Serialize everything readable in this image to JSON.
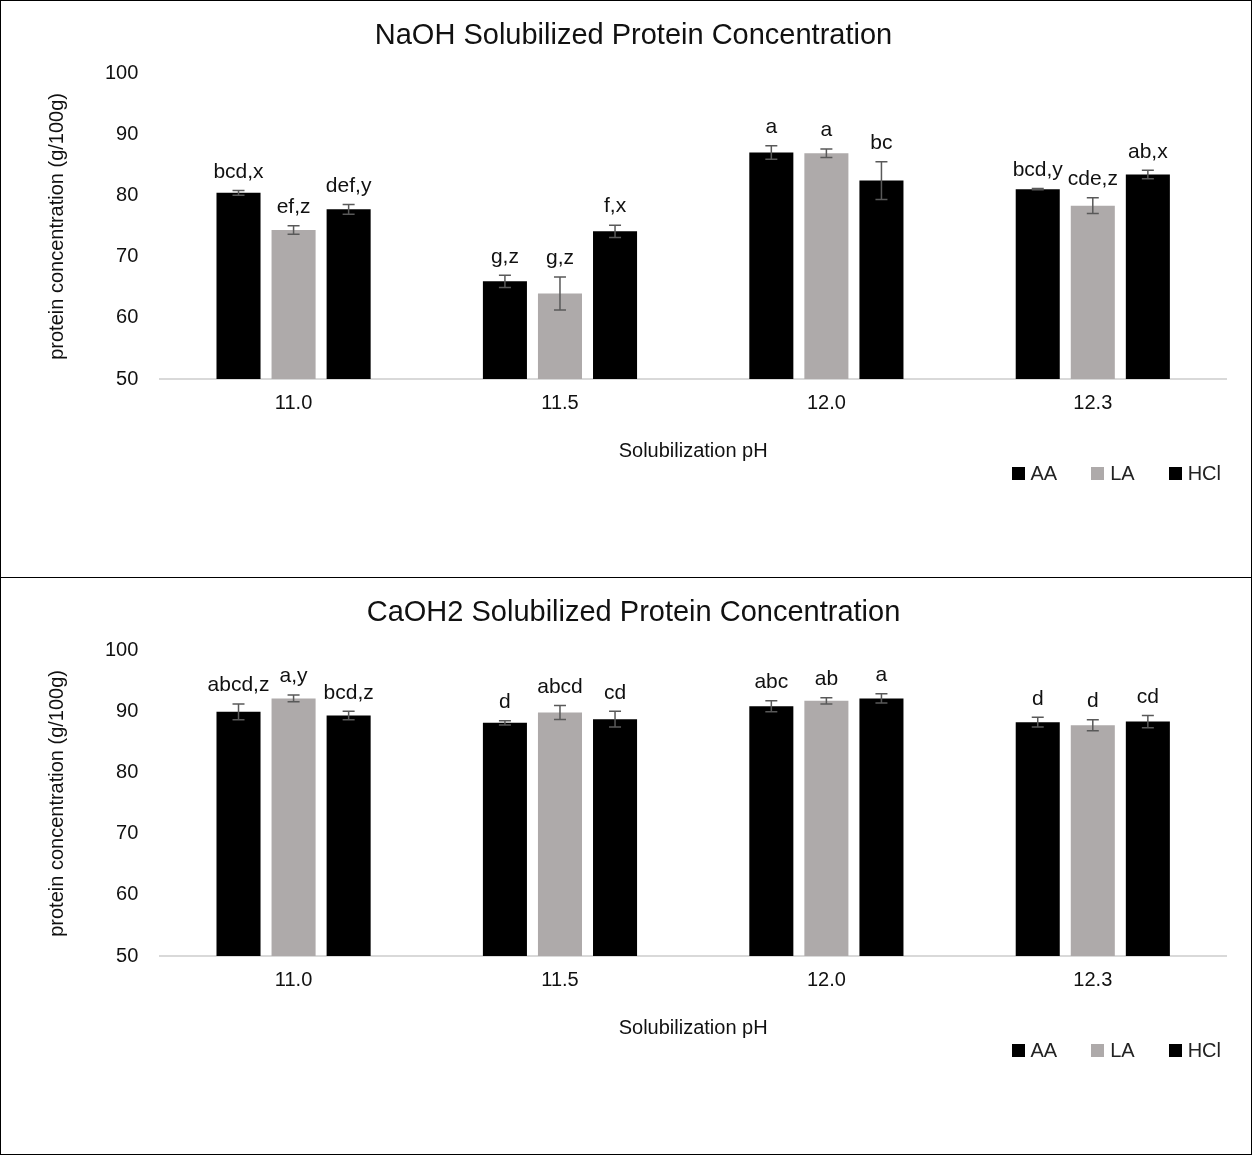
{
  "chart_data": [
    {
      "type": "bar",
      "title": "NaOH Solubilized Protein Concentration",
      "xlabel": "Solubilization pH",
      "ylabel": "protein concentration (g/100g)",
      "categories": [
        "11.0",
        "11.5",
        "12.0",
        "12.3"
      ],
      "ylim": [
        50,
        100
      ],
      "yticks": [
        50,
        60,
        70,
        80,
        90,
        100
      ],
      "legend": "bottom right",
      "series": [
        {
          "name": "AA",
          "color": "#000000",
          "values": [
            80.5,
            66.0,
            87.1,
            81.1
          ],
          "errors": [
            0.4,
            1.0,
            1.1,
            0.1
          ],
          "value_labels": [
            "bcd,x",
            "g,z",
            "a",
            "bcd,y"
          ]
        },
        {
          "name": "LA",
          "color": "#aeaaaa",
          "values": [
            74.4,
            64.0,
            87.0,
            78.4
          ],
          "errors": [
            0.7,
            2.7,
            0.7,
            1.3
          ],
          "value_labels": [
            "ef,z",
            "g,z",
            "a",
            "cde,z"
          ]
        },
        {
          "name": "HCl",
          "color": "#000000",
          "values": [
            77.8,
            74.2,
            82.5,
            83.5
          ],
          "errors": [
            0.8,
            1.0,
            3.1,
            0.7
          ],
          "value_labels": [
            "def,y",
            "f,x",
            "bc",
            "ab,x"
          ]
        }
      ]
    },
    {
      "type": "bar",
      "title": "CaOH2 Solubilized Protein Concentration",
      "xlabel": "Solubilization pH",
      "ylabel": "protein concentration (g/100g)",
      "categories": [
        "11.0",
        "11.5",
        "12.0",
        "12.3"
      ],
      "ylim": [
        50,
        100
      ],
      "yticks": [
        50,
        60,
        70,
        80,
        90,
        100
      ],
      "legend": "bottom right",
      "series": [
        {
          "name": "AA",
          "color": "#000000",
          "values": [
            90.0,
            88.2,
            90.9,
            88.3
          ],
          "errors": [
            1.3,
            0.35,
            0.9,
            0.8
          ],
          "value_labels": [
            "abcd,z",
            "d",
            "abc",
            "d"
          ]
        },
        {
          "name": "LA",
          "color": "#aeaaaa",
          "values": [
            92.2,
            89.9,
            91.8,
            87.8
          ],
          "errors": [
            0.55,
            1.15,
            0.5,
            0.9
          ],
          "value_labels": [
            "a,y",
            "abcd",
            "ab",
            "d"
          ]
        },
        {
          "name": "HCl",
          "color": "#000000",
          "values": [
            89.4,
            88.8,
            92.2,
            88.4
          ],
          "errors": [
            0.7,
            1.3,
            0.75,
            1.0
          ],
          "value_labels": [
            "bcd,z",
            "cd",
            "a",
            "cd"
          ]
        }
      ]
    }
  ]
}
